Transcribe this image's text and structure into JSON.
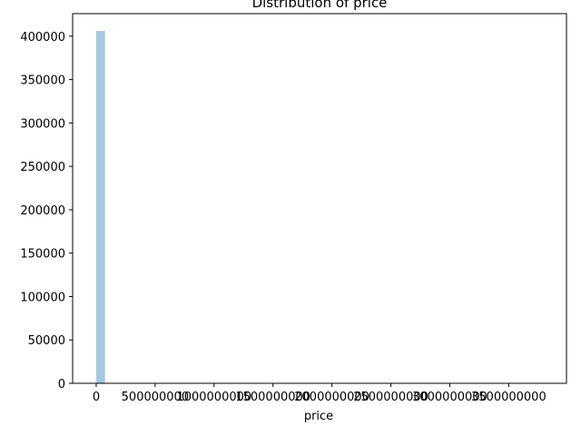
{
  "chart_data": {
    "type": "bar",
    "title": "Distribution of price",
    "xlabel": "price",
    "ylabel": "",
    "xlim": [
      -200000000,
      3990000000
    ],
    "ylim": [
      0,
      426000
    ],
    "x_ticks": [
      0,
      500000000,
      1000000000,
      1500000000,
      2000000000,
      2500000000,
      3000000000,
      3500000000
    ],
    "x_tick_labels": [
      "0",
      "500000000",
      "1000000000",
      "1500000000",
      "2000000000",
      "2500000000",
      "3000000000",
      "3500000000"
    ],
    "y_ticks": [
      0,
      50000,
      100000,
      150000,
      200000,
      250000,
      300000,
      350000,
      400000
    ],
    "y_tick_labels": [
      "0",
      "50000",
      "100000",
      "150000",
      "200000",
      "250000",
      "300000",
      "350000",
      "400000"
    ],
    "grid": false,
    "bins": [
      {
        "x0": 0,
        "x1": 75000000,
        "count": 406000
      }
    ],
    "bar_color": "#a6c8e0"
  }
}
